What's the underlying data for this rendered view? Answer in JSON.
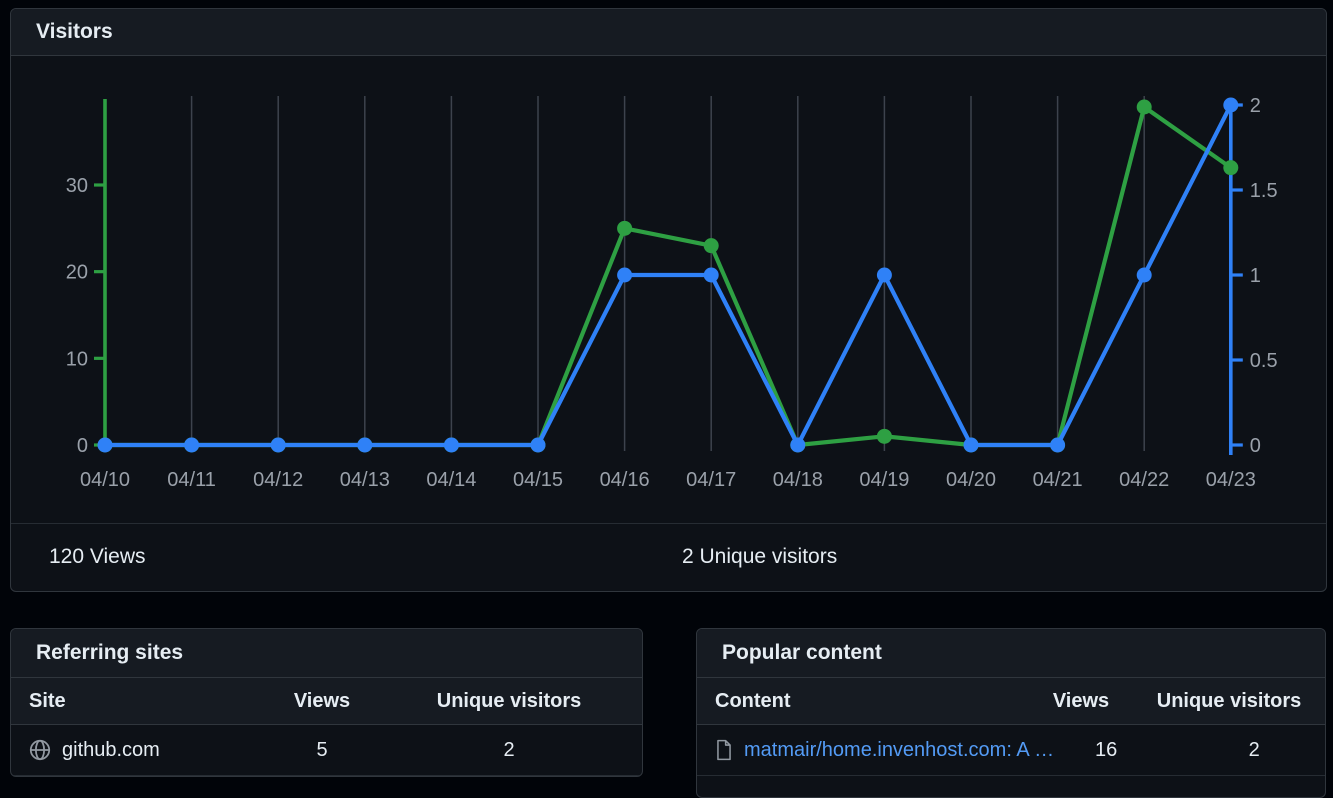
{
  "page": {
    "background": "#010409"
  },
  "visitors_card": {
    "title": "Visitors",
    "views_summary": "120 Views",
    "unique_summary": "2 Unique visitors"
  },
  "chart_data": {
    "type": "line",
    "title": "Visitors",
    "x": [
      "04/10",
      "04/11",
      "04/12",
      "04/13",
      "04/14",
      "04/15",
      "04/16",
      "04/17",
      "04/18",
      "04/19",
      "04/20",
      "04/21",
      "04/22",
      "04/23"
    ],
    "series": [
      {
        "name": "Views",
        "axis": "left",
        "color": "#2ea043",
        "values": [
          0,
          0,
          0,
          0,
          0,
          0,
          25,
          23,
          0,
          1,
          0,
          0,
          39,
          32
        ]
      },
      {
        "name": "Unique visitors",
        "axis": "right",
        "color": "#2f81f7",
        "values": [
          0,
          0,
          0,
          0,
          0,
          0,
          1,
          1,
          0,
          1,
          0,
          0,
          1,
          2
        ]
      }
    ],
    "left_axis": {
      "label": "Views",
      "min": 0,
      "max": 39,
      "ticks": [
        0,
        10,
        20,
        30
      ],
      "color": "#2ea043"
    },
    "right_axis": {
      "label": "Unique visitors",
      "min": 0,
      "max": 2,
      "ticks": [
        0,
        0.5,
        1,
        1.5,
        2
      ],
      "color": "#2f81f7"
    },
    "grid": "vertical",
    "grid_color": "#3d434d",
    "tick_label_color": "#9aa1aa",
    "legend": "none"
  },
  "referring_sites": {
    "title": "Referring sites",
    "columns": [
      "Site",
      "Views",
      "Unique visitors"
    ],
    "rows": [
      {
        "icon": "globe-icon",
        "site": "github.com",
        "views": "5",
        "unique_visitors": "2"
      }
    ]
  },
  "popular_content": {
    "title": "Popular content",
    "columns": [
      "Content",
      "Views",
      "Unique visitors"
    ],
    "rows": [
      {
        "icon": "file-icon",
        "content": "matmair/home.invenhost.com: A …",
        "views": "16",
        "unique_visitors": "2"
      }
    ]
  },
  "theme": {
    "card_background": "#0d1117",
    "header_background": "#161b22",
    "border": "#30363d",
    "link_color": "#539bf5",
    "muted_text": "#9aa1aa"
  }
}
